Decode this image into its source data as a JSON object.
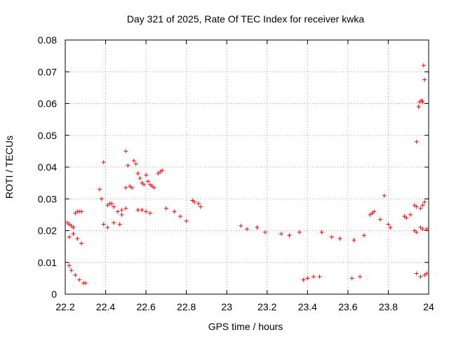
{
  "chart_data": {
    "type": "scatter",
    "title": "Day 321 of 2025, Rate Of TEC Index for receiver kwka",
    "xlabel": "GPS time / hours",
    "ylabel": "ROTI / TECUs",
    "xlim": [
      22.2,
      24
    ],
    "ylim": [
      0,
      0.08
    ],
    "x_ticks": [
      22.2,
      22.4,
      22.6,
      22.8,
      23,
      23.2,
      23.4,
      23.6,
      23.8,
      24
    ],
    "x_tick_labels": [
      "22.2",
      "22.4",
      "22.6",
      "22.8",
      "23",
      "23.2",
      "23.4",
      "23.6",
      "23.8",
      "24"
    ],
    "y_ticks": [
      0,
      0.01,
      0.02,
      0.03,
      0.04,
      0.05,
      0.06,
      0.07,
      0.08
    ],
    "y_tick_labels": [
      "0",
      "0.01",
      "0.02",
      "0.03",
      "0.04",
      "0.05",
      "0.06",
      "0.07",
      "0.08"
    ],
    "grid": true,
    "marker": "+",
    "marker_color": "#ff0000",
    "series": [
      {
        "name": "ROTI",
        "points": [
          [
            22.21,
            0.0225
          ],
          [
            22.22,
            0.022
          ],
          [
            22.23,
            0.0215
          ],
          [
            22.24,
            0.021
          ],
          [
            22.25,
            0.0255
          ],
          [
            22.26,
            0.026
          ],
          [
            22.27,
            0.026
          ],
          [
            22.28,
            0.026
          ],
          [
            22.22,
            0.018
          ],
          [
            22.24,
            0.019
          ],
          [
            22.26,
            0.0175
          ],
          [
            22.28,
            0.016
          ],
          [
            22.22,
            0.009
          ],
          [
            22.23,
            0.0075
          ],
          [
            22.25,
            0.006
          ],
          [
            22.27,
            0.0045
          ],
          [
            22.29,
            0.0035
          ],
          [
            22.3,
            0.0035
          ],
          [
            22.37,
            0.033
          ],
          [
            22.38,
            0.03
          ],
          [
            22.39,
            0.0415
          ],
          [
            22.41,
            0.028
          ],
          [
            22.42,
            0.0285
          ],
          [
            22.43,
            0.0285
          ],
          [
            22.44,
            0.0275
          ],
          [
            22.46,
            0.026
          ],
          [
            22.48,
            0.025
          ],
          [
            22.5,
            0.0335
          ],
          [
            22.5,
            0.045
          ],
          [
            22.51,
            0.0405
          ],
          [
            22.52,
            0.034
          ],
          [
            22.53,
            0.0335
          ],
          [
            22.54,
            0.042
          ],
          [
            22.55,
            0.041
          ],
          [
            22.56,
            0.038
          ],
          [
            22.57,
            0.0365
          ],
          [
            22.58,
            0.035
          ],
          [
            22.59,
            0.0345
          ],
          [
            22.6,
            0.0375
          ],
          [
            22.61,
            0.0355
          ],
          [
            22.62,
            0.0345
          ],
          [
            22.63,
            0.034
          ],
          [
            22.64,
            0.0335
          ],
          [
            22.66,
            0.038
          ],
          [
            22.67,
            0.0385
          ],
          [
            22.68,
            0.039
          ],
          [
            22.56,
            0.0265
          ],
          [
            22.58,
            0.0265
          ],
          [
            22.6,
            0.026
          ],
          [
            22.62,
            0.0255
          ],
          [
            22.48,
            0.0265
          ],
          [
            22.5,
            0.027
          ],
          [
            22.7,
            0.027
          ],
          [
            22.74,
            0.026
          ],
          [
            22.77,
            0.0245
          ],
          [
            22.8,
            0.023
          ],
          [
            22.83,
            0.0295
          ],
          [
            22.84,
            0.029
          ],
          [
            22.86,
            0.0285
          ],
          [
            22.87,
            0.0275
          ],
          [
            22.39,
            0.022
          ],
          [
            22.41,
            0.021
          ],
          [
            22.44,
            0.0225
          ],
          [
            22.47,
            0.022
          ],
          [
            23.71,
            0.025
          ],
          [
            23.72,
            0.0255
          ],
          [
            23.73,
            0.026
          ],
          [
            23.76,
            0.0235
          ],
          [
            23.78,
            0.031
          ],
          [
            23.8,
            0.022
          ],
          [
            23.81,
            0.021
          ],
          [
            23.88,
            0.0245
          ],
          [
            23.89,
            0.024
          ],
          [
            23.91,
            0.025
          ],
          [
            23.93,
            0.028
          ],
          [
            23.94,
            0.0275
          ],
          [
            23.96,
            0.027
          ],
          [
            23.97,
            0.028
          ],
          [
            23.98,
            0.029
          ],
          [
            23.94,
            0.048
          ],
          [
            23.95,
            0.059
          ],
          [
            23.955,
            0.0605
          ],
          [
            23.965,
            0.061
          ],
          [
            23.97,
            0.0605
          ],
          [
            23.975,
            0.072
          ],
          [
            23.98,
            0.0675
          ],
          [
            23.93,
            0.02
          ],
          [
            23.94,
            0.0195
          ],
          [
            23.96,
            0.021
          ],
          [
            23.97,
            0.0205
          ],
          [
            23.99,
            0.0205
          ],
          [
            23.94,
            0.0065
          ],
          [
            23.96,
            0.0055
          ],
          [
            23.98,
            0.006
          ],
          [
            23.99,
            0.0065
          ],
          [
            23.07,
            0.0215
          ],
          [
            23.1,
            0.0205
          ],
          [
            23.15,
            0.021
          ],
          [
            23.19,
            0.0195
          ],
          [
            23.27,
            0.019
          ],
          [
            23.31,
            0.0185
          ],
          [
            23.36,
            0.0195
          ],
          [
            23.47,
            0.0195
          ],
          [
            23.52,
            0.018
          ],
          [
            23.56,
            0.0175
          ],
          [
            23.63,
            0.017
          ],
          [
            23.68,
            0.0185
          ],
          [
            23.38,
            0.0045
          ],
          [
            23.4,
            0.005
          ],
          [
            23.43,
            0.0055
          ],
          [
            23.46,
            0.0055
          ],
          [
            23.62,
            0.005
          ],
          [
            23.66,
            0.0055
          ]
        ]
      }
    ]
  }
}
